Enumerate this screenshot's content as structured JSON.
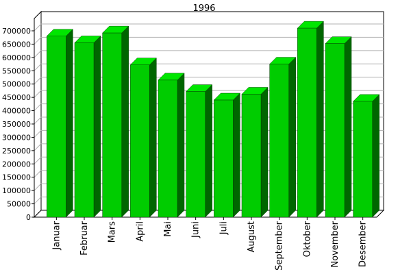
{
  "chart_data": {
    "type": "bar",
    "title": "1996",
    "xlabel": "",
    "ylabel": "",
    "categories": [
      "Januar",
      "Februar",
      "Mars",
      "April",
      "Mai",
      "Juni",
      "Juli",
      "August",
      "September",
      "Oktober",
      "November",
      "Desember"
    ],
    "values": [
      680000,
      655000,
      692000,
      572000,
      515000,
      472000,
      440000,
      462000,
      575000,
      710000,
      652000,
      435000
    ],
    "ylim": [
      0,
      700000
    ],
    "yticks": [
      "0",
      "50000",
      "100000",
      "150000",
      "200000",
      "250000",
      "300000",
      "350000",
      "400000",
      "450000",
      "500000",
      "550000",
      "600000",
      "650000",
      "700000"
    ],
    "grid": true,
    "legend": "none",
    "colors": {
      "bar_front": "#00cc00",
      "bar_top": "#00e600",
      "bar_side": "#006600",
      "bar_edge": "#004400",
      "wall_back": "#ffffff",
      "wall_left": "#ffffff",
      "floor": "#ffffff",
      "grid": "#b0b0b0"
    }
  }
}
